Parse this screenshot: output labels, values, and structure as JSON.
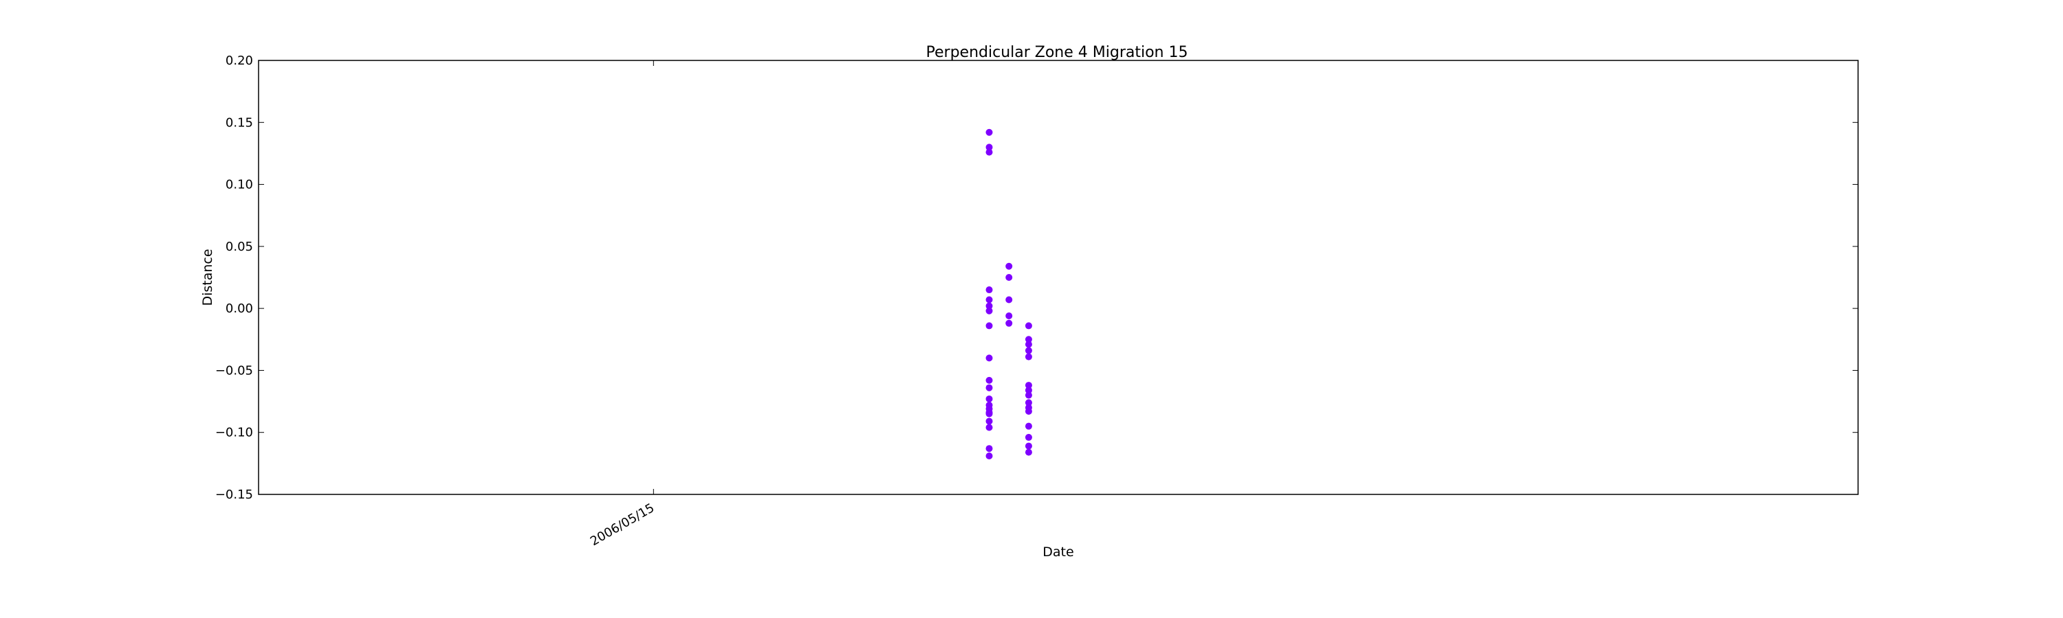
{
  "chart_data": {
    "type": "scatter",
    "title": "Perpendicular Zone 4 Migration 15",
    "xlabel": "Date",
    "ylabel": "Distance",
    "ylim": [
      -0.15,
      0.2
    ],
    "yticks": [
      "0.20",
      "0.15",
      "0.10",
      "0.05",
      "0.00",
      "−0.05",
      "−0.10",
      "−0.15"
    ],
    "yticks_values": [
      0.2,
      0.15,
      0.1,
      0.05,
      0.0,
      -0.05,
      -0.1,
      -0.15
    ],
    "xlim": [
      "2006-04-25",
      "2006-07-15"
    ],
    "xticks": [
      "2006/05/15"
    ],
    "xticks_values": [
      "2006-05-15"
    ],
    "grid": false,
    "marker_color": "#7f00ff",
    "points": [
      {
        "x": "2006-06-01",
        "y": 0.142
      },
      {
        "x": "2006-06-01",
        "y": 0.13
      },
      {
        "x": "2006-06-01",
        "y": 0.126
      },
      {
        "x": "2006-06-01",
        "y": -0.078
      },
      {
        "x": "2006-06-01",
        "y": -0.073
      },
      {
        "x": "2006-06-01",
        "y": -0.084
      },
      {
        "x": "2006-06-01",
        "y": -0.091
      },
      {
        "x": "2006-06-01",
        "y": -0.113
      },
      {
        "x": "2006-06-01",
        "y": -0.119
      },
      {
        "x": "2006-06-01",
        "y": -0.096
      },
      {
        "x": "2006-06-01",
        "y": -0.064
      },
      {
        "x": "2006-06-01",
        "y": 0.015
      },
      {
        "x": "2006-06-01",
        "y": 0.007
      },
      {
        "x": "2006-06-01",
        "y": 0.002
      },
      {
        "x": "2006-06-01",
        "y": -0.002
      },
      {
        "x": "2006-06-01",
        "y": -0.014
      },
      {
        "x": "2006-06-01",
        "y": -0.04
      },
      {
        "x": "2006-06-01",
        "y": -0.058
      },
      {
        "x": "2006-06-01",
        "y": -0.081
      },
      {
        "x": "2006-06-01",
        "y": -0.085
      },
      {
        "x": "2006-06-02",
        "y": 0.034
      },
      {
        "x": "2006-06-02",
        "y": 0.025
      },
      {
        "x": "2006-06-02",
        "y": 0.007
      },
      {
        "x": "2006-06-02",
        "y": -0.006
      },
      {
        "x": "2006-06-02",
        "y": -0.012
      },
      {
        "x": "2006-06-03",
        "y": -0.014
      },
      {
        "x": "2006-06-03",
        "y": -0.029
      },
      {
        "x": "2006-06-03",
        "y": -0.034
      },
      {
        "x": "2006-06-03",
        "y": -0.039
      },
      {
        "x": "2006-06-03",
        "y": -0.066
      },
      {
        "x": "2006-06-03",
        "y": -0.076
      },
      {
        "x": "2006-06-03",
        "y": -0.08
      },
      {
        "x": "2006-06-03",
        "y": -0.116
      },
      {
        "x": "2006-06-03",
        "y": -0.083
      },
      {
        "x": "2006-06-03",
        "y": -0.095
      },
      {
        "x": "2006-06-03",
        "y": -0.104
      },
      {
        "x": "2006-06-03",
        "y": -0.111
      },
      {
        "x": "2006-06-03",
        "y": -0.025
      },
      {
        "x": "2006-06-03",
        "y": -0.062
      },
      {
        "x": "2006-06-03",
        "y": -0.07
      }
    ]
  }
}
